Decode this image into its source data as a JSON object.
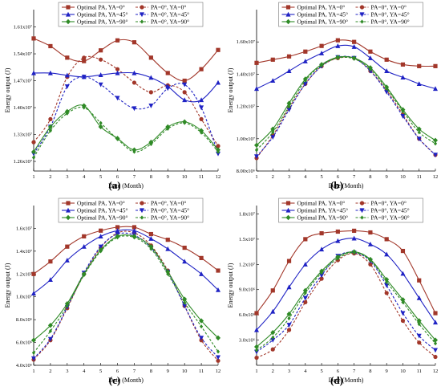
{
  "chart_data": [
    {
      "type": "line",
      "panel_label": "(a)",
      "xlabel": "Date (Month)",
      "ylabel": "Energy output (J)",
      "x": [
        1,
        2,
        3,
        4,
        5,
        6,
        7,
        8,
        9,
        10,
        11,
        12
      ],
      "x_ticks": [
        "1",
        "2",
        "3",
        "4",
        "5",
        "6",
        "7",
        "8",
        "9",
        "10",
        "11",
        "12"
      ],
      "ylim": [
        1.235,
        1.655
      ],
      "y_ticks": [
        1.26,
        1.33,
        1.4,
        1.47,
        1.54,
        1.61
      ],
      "y_tick_labels": [
        "1.26x10⁷",
        "1.33x10⁷",
        "1.40x10⁷",
        "1.47x10⁷",
        "1.54x10⁷",
        "1.61x10⁷"
      ],
      "series": [
        {
          "name": "Optimal PA, YA=0°",
          "color": "#a2372a",
          "marker": "square",
          "dashed": false,
          "values": [
            1.58,
            1.56,
            1.53,
            1.521,
            1.549,
            1.575,
            1.57,
            1.53,
            1.49,
            1.47,
            1.5,
            1.55
          ]
        },
        {
          "name": "PA=0°, YA=0°",
          "color": "#a2372a",
          "marker": "circle",
          "dashed": true,
          "values": [
            1.31,
            1.37,
            1.48,
            1.53,
            1.525,
            1.5,
            1.465,
            1.44,
            1.458,
            1.44,
            1.37,
            1.3
          ]
        },
        {
          "name": "Optimal PA, YA=45°",
          "color": "#1f22c4",
          "marker": "triangle-up",
          "dashed": false,
          "values": [
            1.49,
            1.49,
            1.484,
            1.48,
            1.485,
            1.49,
            1.49,
            1.478,
            1.455,
            1.42,
            1.42,
            1.465
          ]
        },
        {
          "name": "PA=0°, YA=45°",
          "color": "#1f22c4",
          "marker": "triangle-down",
          "dashed": true,
          "values": [
            1.28,
            1.35,
            1.455,
            1.48,
            1.46,
            1.425,
            1.398,
            1.405,
            1.45,
            1.46,
            1.4,
            1.28
          ]
        },
        {
          "name": "Optimal PA, YA=90°",
          "color": "#2f8a26",
          "marker": "diamond",
          "dashed": false,
          "values": [
            1.285,
            1.35,
            1.39,
            1.405,
            1.35,
            1.32,
            1.29,
            1.31,
            1.35,
            1.363,
            1.34,
            1.29
          ]
        },
        {
          "name": "PA=0°, YA=90°",
          "color": "#2f8a26",
          "marker": "diamond-small",
          "dashed": true,
          "values": [
            1.27,
            1.34,
            1.385,
            1.4,
            1.36,
            1.318,
            1.285,
            1.305,
            1.345,
            1.36,
            1.335,
            1.285
          ]
        }
      ]
    },
    {
      "type": "line",
      "panel_label": "(b)",
      "xlabel": "Date (Month)",
      "ylabel": "Energy output (J)",
      "x": [
        1,
        2,
        3,
        4,
        5,
        6,
        7,
        8,
        9,
        10,
        11,
        12
      ],
      "x_ticks": [
        "1",
        "2",
        "3",
        "4",
        "5",
        "6",
        "7",
        "8",
        "9",
        "10",
        "11",
        "12"
      ],
      "ylim": [
        0.8,
        1.8
      ],
      "y_ticks": [
        0.8,
        1.0,
        1.2,
        1.4,
        1.6
      ],
      "y_tick_labels": [
        "8.00x10⁶",
        "1.00x10⁷",
        "1.20x10⁷",
        "1.40x10⁷",
        "1.60x10⁷"
      ],
      "series": [
        {
          "name": "Optimal PA, YA=0°",
          "color": "#a2372a",
          "marker": "square",
          "dashed": false,
          "values": [
            1.47,
            1.49,
            1.51,
            1.54,
            1.575,
            1.61,
            1.6,
            1.54,
            1.49,
            1.46,
            1.45,
            1.45
          ]
        },
        {
          "name": "PA=0°, YA=0°",
          "color": "#a2372a",
          "marker": "circle",
          "dashed": true,
          "values": [
            0.88,
            1.02,
            1.19,
            1.34,
            1.45,
            1.5,
            1.5,
            1.42,
            1.3,
            1.15,
            1.0,
            0.9
          ]
        },
        {
          "name": "Optimal PA, YA=45°",
          "color": "#1f22c4",
          "marker": "triangle-up",
          "dashed": false,
          "values": [
            1.31,
            1.36,
            1.42,
            1.48,
            1.53,
            1.575,
            1.57,
            1.5,
            1.42,
            1.38,
            1.34,
            1.31
          ]
        },
        {
          "name": "PA=0°, YA=45°",
          "color": "#1f22c4",
          "marker": "triangle-down",
          "dashed": true,
          "values": [
            0.89,
            1.01,
            1.18,
            1.34,
            1.45,
            1.505,
            1.5,
            1.42,
            1.29,
            1.14,
            1.0,
            0.9
          ]
        },
        {
          "name": "Optimal PA, YA=90°",
          "color": "#2f8a26",
          "marker": "diamond",
          "dashed": false,
          "values": [
            0.96,
            1.06,
            1.22,
            1.37,
            1.46,
            1.505,
            1.5,
            1.44,
            1.32,
            1.18,
            1.06,
            0.99
          ]
        },
        {
          "name": "PA=0°, YA=90°",
          "color": "#2f8a26",
          "marker": "diamond-small",
          "dashed": true,
          "values": [
            0.93,
            1.04,
            1.2,
            1.36,
            1.455,
            1.5,
            1.495,
            1.43,
            1.31,
            1.17,
            1.04,
            0.97
          ]
        }
      ]
    },
    {
      "type": "line",
      "panel_label": "(c)",
      "xlabel": "Date (Month)",
      "ylabel": "Energy output (J)",
      "x": [
        1,
        2,
        3,
        4,
        5,
        6,
        7,
        8,
        9,
        10,
        11,
        12
      ],
      "x_ticks": [
        "1",
        "2",
        "3",
        "4",
        "5",
        "6",
        "7",
        "8",
        "9",
        "10",
        "11",
        "12"
      ],
      "ylim": [
        0.4,
        1.8
      ],
      "y_ticks": [
        0.4,
        0.6,
        0.8,
        1.0,
        1.2,
        1.4,
        1.6
      ],
      "y_tick_labels": [
        "4.0x10⁶",
        "6.0x10⁶",
        "8.0x10⁶",
        "1.0x10⁷",
        "1.2x10⁷",
        "1.4x10⁷",
        "1.6x10⁷"
      ],
      "series": [
        {
          "name": "Optimal PA, YA=0°",
          "color": "#a2372a",
          "marker": "square",
          "dashed": false,
          "values": [
            1.2,
            1.31,
            1.44,
            1.53,
            1.58,
            1.61,
            1.61,
            1.55,
            1.5,
            1.43,
            1.34,
            1.23
          ]
        },
        {
          "name": "PA=0°, YA=0°",
          "color": "#a2372a",
          "marker": "circle",
          "dashed": true,
          "values": [
            0.45,
            0.62,
            0.9,
            1.2,
            1.43,
            1.56,
            1.56,
            1.45,
            1.23,
            0.92,
            0.62,
            0.44
          ]
        },
        {
          "name": "Optimal PA, YA=45°",
          "color": "#1f22c4",
          "marker": "triangle-up",
          "dashed": false,
          "values": [
            1.03,
            1.15,
            1.32,
            1.44,
            1.53,
            1.58,
            1.58,
            1.51,
            1.42,
            1.31,
            1.2,
            1.06
          ]
        },
        {
          "name": "PA=0°, YA=45°",
          "color": "#1f22c4",
          "marker": "triangle-down",
          "dashed": true,
          "values": [
            0.46,
            0.63,
            0.91,
            1.21,
            1.44,
            1.55,
            1.54,
            1.43,
            1.22,
            0.92,
            0.64,
            0.47
          ]
        },
        {
          "name": "Optimal PA, YA=90°",
          "color": "#2f8a26",
          "marker": "diamond",
          "dashed": false,
          "values": [
            0.62,
            0.75,
            0.94,
            1.2,
            1.41,
            1.53,
            1.53,
            1.44,
            1.22,
            0.98,
            0.79,
            0.64
          ]
        },
        {
          "name": "PA=0°, YA=90°",
          "color": "#2f8a26",
          "marker": "diamond-small",
          "dashed": true,
          "values": [
            0.51,
            0.7,
            0.92,
            1.19,
            1.4,
            1.52,
            1.52,
            1.42,
            1.2,
            0.95,
            0.74,
            0.52
          ]
        }
      ]
    },
    {
      "type": "line",
      "panel_label": "(d)",
      "xlabel": "Date (Month)",
      "ylabel": "Energy output (J)",
      "x": [
        1,
        2,
        3,
        4,
        5,
        6,
        7,
        8,
        9,
        10,
        11,
        12
      ],
      "x_ticks": [
        "1",
        "2",
        "3",
        "4",
        "5",
        "6",
        "7",
        "8",
        "9",
        "10",
        "11",
        "12"
      ],
      "ylim": [
        0.0,
        1.9
      ],
      "y_ticks": [
        0.3,
        0.6,
        0.9,
        1.2,
        1.5,
        1.8
      ],
      "y_tick_labels": [
        "3.0x10⁶",
        "6.0x10⁶",
        "9.0x10⁶",
        "1.2x10⁷",
        "1.5x10⁷",
        "1.8x10⁷"
      ],
      "series": [
        {
          "name": "Optimal PA, YA=0°",
          "color": "#a2372a",
          "marker": "square",
          "dashed": false,
          "values": [
            0.62,
            0.89,
            1.24,
            1.5,
            1.57,
            1.59,
            1.6,
            1.58,
            1.5,
            1.36,
            1.01,
            0.62
          ]
        },
        {
          "name": "PA=0°, YA=0°",
          "color": "#a2372a",
          "marker": "circle",
          "dashed": true,
          "values": [
            0.09,
            0.19,
            0.42,
            0.75,
            1.03,
            1.25,
            1.33,
            1.2,
            0.86,
            0.53,
            0.27,
            0.1
          ]
        },
        {
          "name": "Optimal PA, YA=45°",
          "color": "#1f22c4",
          "marker": "triangle-up",
          "dashed": false,
          "values": [
            0.42,
            0.64,
            0.93,
            1.2,
            1.38,
            1.48,
            1.51,
            1.44,
            1.32,
            1.09,
            0.8,
            0.51
          ]
        },
        {
          "name": "PA=0°, YA=45°",
          "color": "#1f22c4",
          "marker": "triangle-down",
          "dashed": true,
          "values": [
            0.16,
            0.3,
            0.48,
            0.8,
            1.07,
            1.3,
            1.34,
            1.24,
            0.95,
            0.62,
            0.35,
            0.18
          ]
        },
        {
          "name": "Optimal PA, YA=90°",
          "color": "#2f8a26",
          "marker": "diamond",
          "dashed": false,
          "values": [
            0.22,
            0.39,
            0.61,
            0.89,
            1.12,
            1.29,
            1.35,
            1.26,
            1.02,
            0.78,
            0.53,
            0.3
          ]
        },
        {
          "name": "PA=0°, YA=90°",
          "color": "#2f8a26",
          "marker": "diamond-small",
          "dashed": true,
          "values": [
            0.18,
            0.33,
            0.56,
            0.86,
            1.1,
            1.27,
            1.34,
            1.25,
            0.99,
            0.75,
            0.49,
            0.26
          ]
        }
      ]
    }
  ]
}
